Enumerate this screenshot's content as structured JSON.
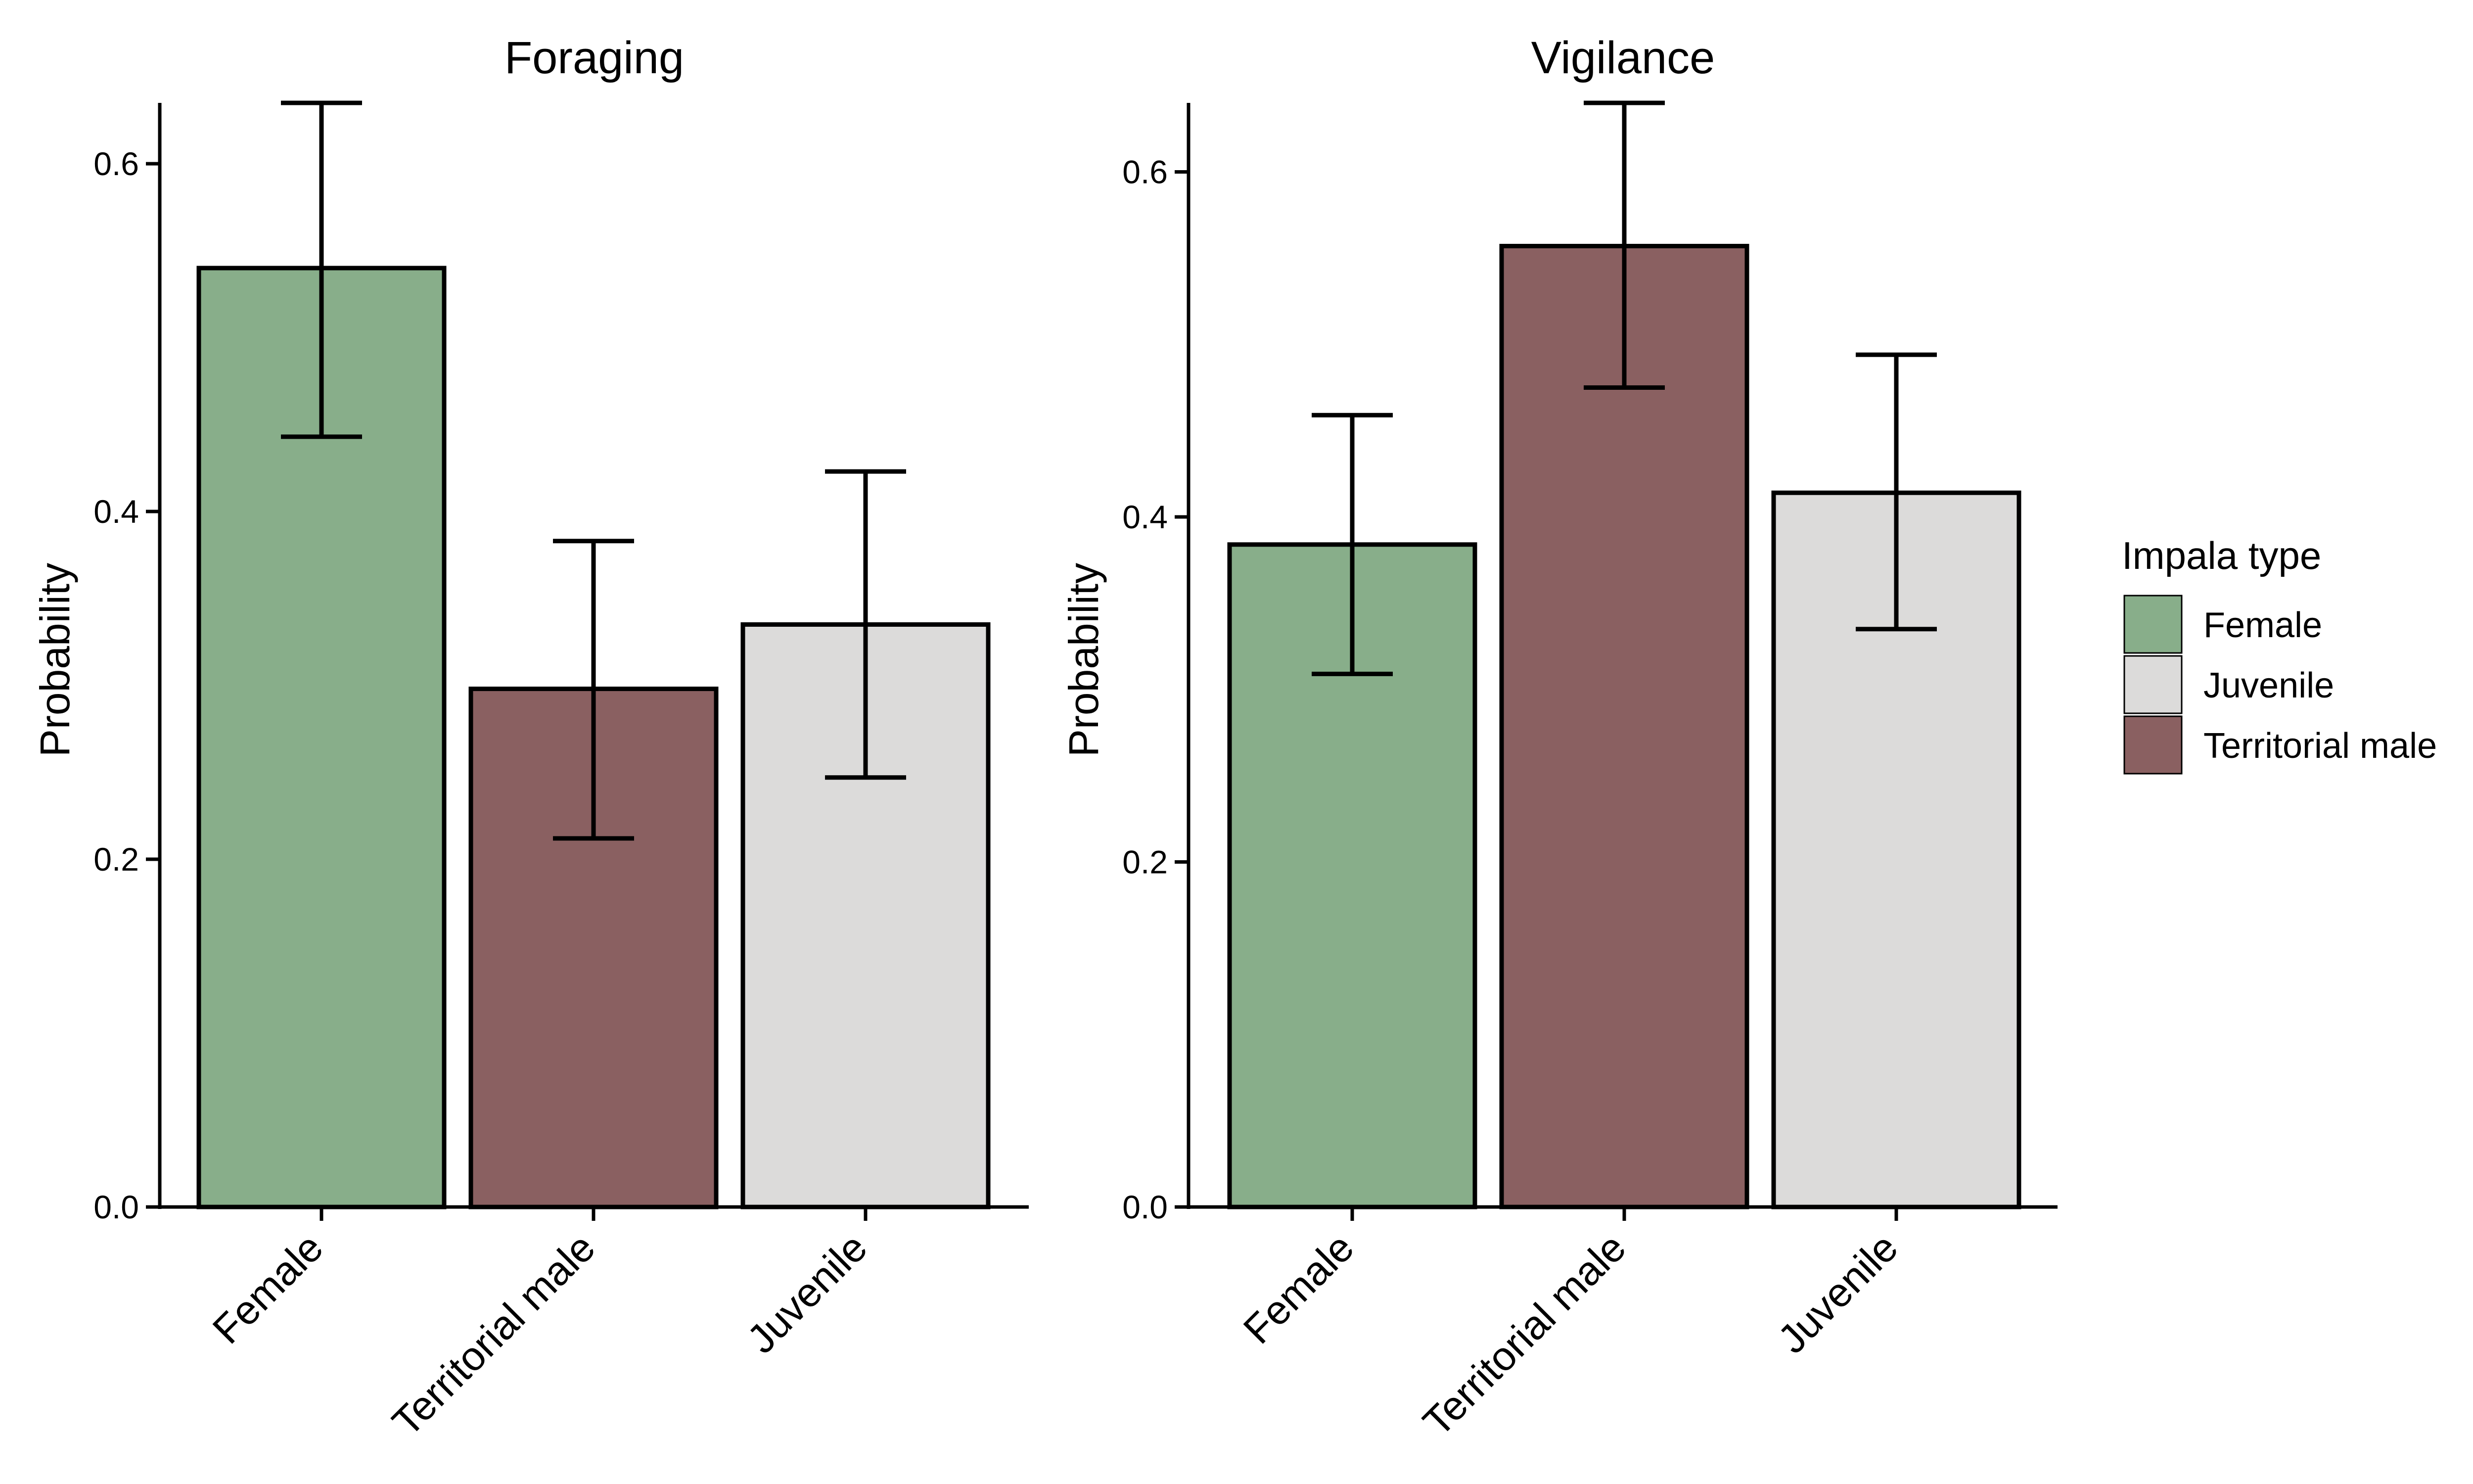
{
  "chart_data": [
    {
      "type": "bar",
      "title": "Foraging",
      "xlabel": "",
      "ylabel": "Probability",
      "ylim": [
        0,
        0.635
      ],
      "yticks": [
        0.0,
        0.2,
        0.4,
        0.6
      ],
      "ytick_labels": [
        "0.0",
        "0.2",
        "0.4",
        "0.6"
      ],
      "categories": [
        "Female",
        "Territorial male",
        "Juvenile"
      ],
      "values": [
        0.54,
        0.298,
        0.335
      ],
      "error_low": [
        0.443,
        0.212,
        0.247
      ],
      "error_high": [
        0.635,
        0.383,
        0.423
      ],
      "grid": false
    },
    {
      "type": "bar",
      "title": "Vigilance",
      "xlabel": "",
      "ylabel": "Probability",
      "ylim": [
        0,
        0.64
      ],
      "yticks": [
        0.0,
        0.2,
        0.4,
        0.6
      ],
      "ytick_labels": [
        "0.0",
        "0.2",
        "0.4",
        "0.6"
      ],
      "categories": [
        "Female",
        "Territorial male",
        "Juvenile"
      ],
      "values": [
        0.384,
        0.557,
        0.414
      ],
      "error_low": [
        0.309,
        0.475,
        0.335
      ],
      "error_high": [
        0.459,
        0.64,
        0.494
      ],
      "grid": false
    }
  ],
  "legend": {
    "title": "Impala type",
    "position": "right",
    "items": [
      {
        "label": "Female",
        "color": "#88ae8a"
      },
      {
        "label": "Juvenile",
        "color": "#dcdbda"
      },
      {
        "label": "Territorial male",
        "color": "#8a6061"
      }
    ]
  },
  "colors": {
    "Female": "#88ae8a",
    "Territorial male": "#8a6061",
    "Juvenile": "#dcdbda",
    "outline": "#000000"
  }
}
